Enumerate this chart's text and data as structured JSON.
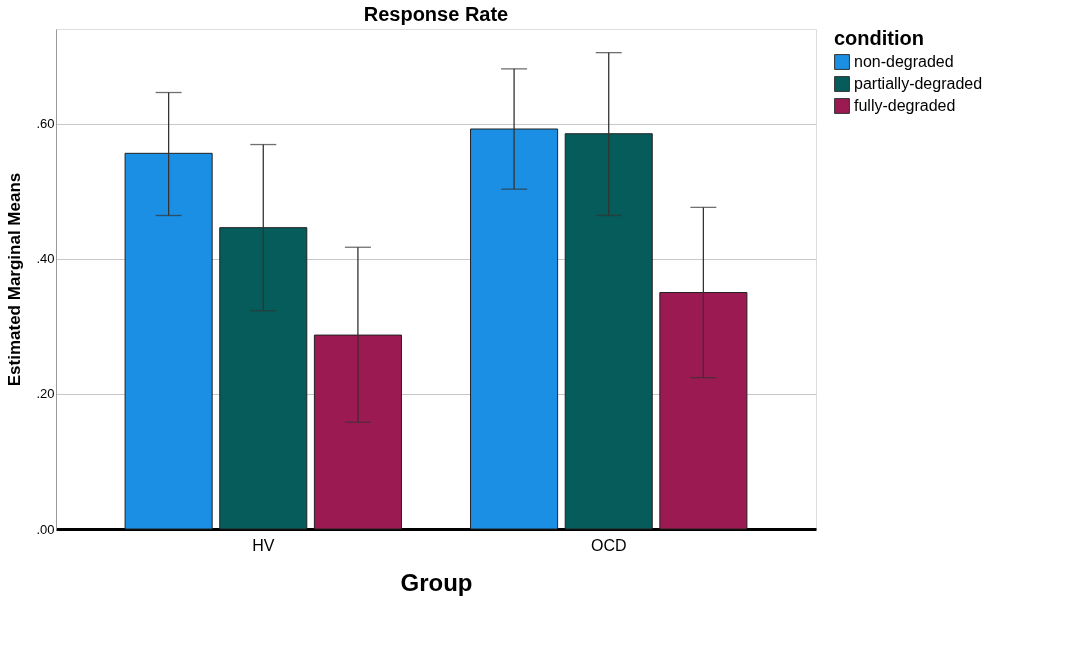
{
  "chart_data": {
    "type": "bar",
    "title": "Response Rate",
    "xlabel": "Group",
    "ylabel": "Estimated Marginal Means",
    "legend_title": "condition",
    "categories": [
      "HV",
      "OCD"
    ],
    "series": [
      {
        "name": "non-degraded",
        "color": "#1a8fe3",
        "values": [
          0.556,
          0.592
        ],
        "errors": [
          [
            0.464,
            0.646
          ],
          [
            0.503,
            0.681
          ]
        ]
      },
      {
        "name": "partially-degraded",
        "color": "#055c5a",
        "values": [
          0.446,
          0.585
        ],
        "errors": [
          [
            0.323,
            0.569
          ],
          [
            0.464,
            0.705
          ]
        ]
      },
      {
        "name": "fully-degraded",
        "color": "#9c1a52",
        "values": [
          0.287,
          0.35
        ],
        "errors": [
          [
            0.158,
            0.417
          ],
          [
            0.224,
            0.476
          ]
        ]
      }
    ],
    "ylim": [
      0,
      0.74
    ],
    "yticks": [
      {
        "value": 0,
        "label": ".00"
      },
      {
        "value": 0.2,
        "label": ".20"
      },
      {
        "value": 0.4,
        "label": ".40"
      },
      {
        "value": 0.6,
        "label": ".60"
      }
    ],
    "grid": "y",
    "legend": "top right"
  }
}
